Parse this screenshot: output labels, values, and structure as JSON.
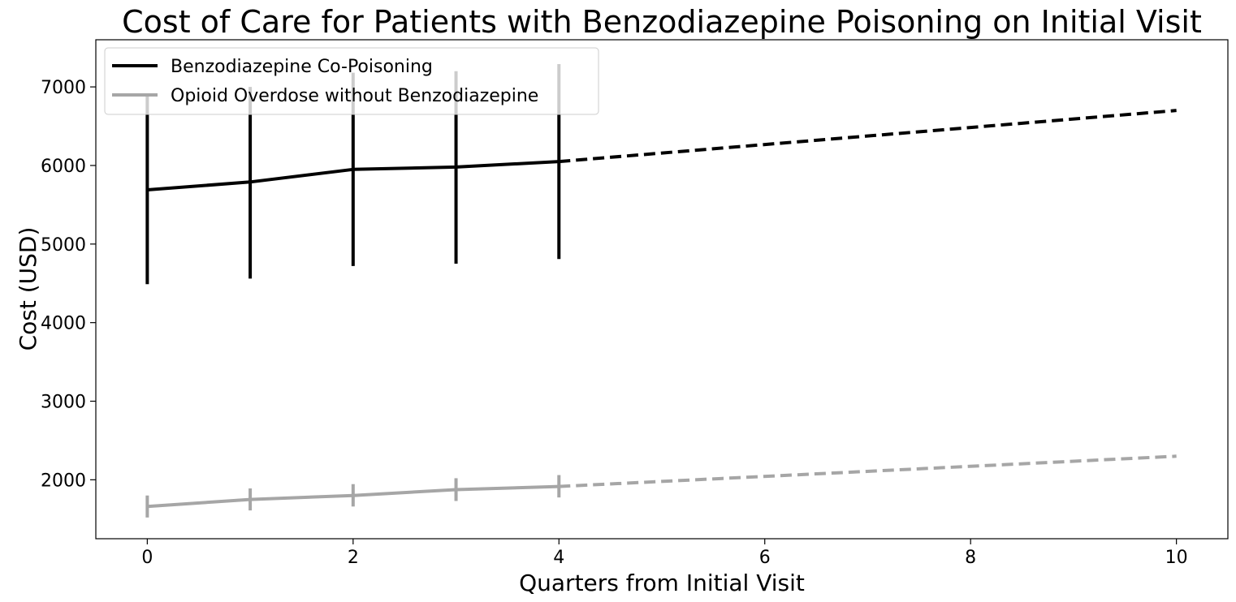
{
  "chart_data": {
    "type": "line",
    "title": "Cost of Care for Patients with Benzodiazepine Poisoning on Initial Visit",
    "xlabel": "Quarters from Initial Visit",
    "ylabel": "Cost (USD)",
    "xlim": [
      -0.5,
      10.5
    ],
    "ylim": [
      1250,
      7600
    ],
    "xticks": [
      0,
      2,
      4,
      6,
      8,
      10
    ],
    "yticks": [
      2000,
      3000,
      4000,
      5000,
      6000,
      7000
    ],
    "grid": false,
    "legend_position": "upper left",
    "series": [
      {
        "name": "Benzodiazepine Co-Poisoning",
        "color": "#000000",
        "observed": {
          "x": [
            0,
            1,
            2,
            3,
            4
          ],
          "y": [
            5690,
            5790,
            5950,
            5980,
            6050
          ],
          "err_low": [
            4490,
            4560,
            4720,
            4750,
            4810
          ],
          "err_high": [
            6880,
            7000,
            7180,
            7200,
            7290
          ]
        },
        "projected": {
          "x": [
            4,
            10
          ],
          "y": [
            6050,
            6700
          ]
        }
      },
      {
        "name": "Opioid Overdose without Benzodiazepine",
        "color": "#a6a6a6",
        "observed": {
          "x": [
            0,
            1,
            2,
            3,
            4
          ],
          "y": [
            1660,
            1750,
            1800,
            1875,
            1915
          ],
          "err_low": [
            1520,
            1610,
            1660,
            1730,
            1775
          ],
          "err_high": [
            1800,
            1890,
            1945,
            2020,
            2060
          ]
        },
        "projected": {
          "x": [
            4,
            10
          ],
          "y": [
            1915,
            2300
          ]
        }
      }
    ]
  }
}
